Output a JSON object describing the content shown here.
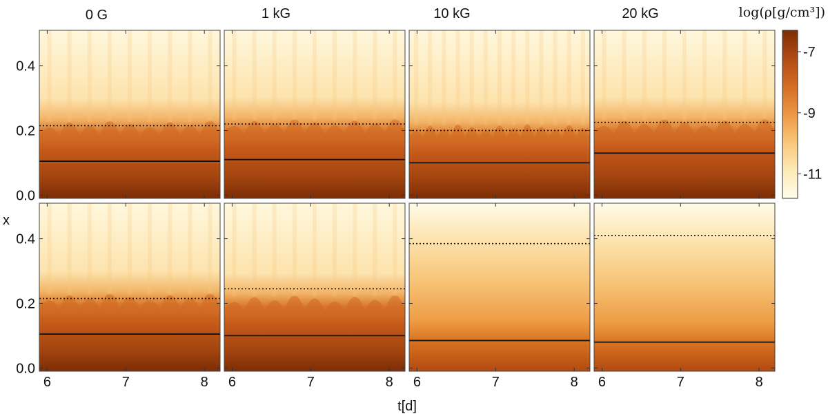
{
  "chart_data": {
    "type": "heatmap",
    "layout": {
      "rows": 2,
      "cols": 4
    },
    "column_titles": [
      "0 G",
      "1 kG",
      "10 kG",
      "20 kG"
    ],
    "xlabel": "t[d]",
    "ylabel": "x",
    "xlim": [
      5.9,
      8.2
    ],
    "ylim": [
      -0.01,
      0.51
    ],
    "xticks": [
      6,
      7,
      8
    ],
    "xtick_labels": [
      "6",
      "7",
      "8"
    ],
    "yticks": [
      0.0,
      0.2,
      0.4
    ],
    "ytick_labels": [
      "0.0",
      "0.2",
      "0.4"
    ],
    "colorbar": {
      "title": "log(ρ[g/cm³])",
      "range": [
        -11.8,
        -6.3
      ],
      "ticks": [
        -7,
        -9,
        -11
      ],
      "tick_labels": [
        "-7",
        "-9",
        "-11"
      ],
      "colors": [
        "#fffdec",
        "#fde9b6",
        "#f8c577",
        "#ec9745",
        "#d46c24",
        "#ae4a12",
        "#7d2d06"
      ]
    },
    "panels": [
      {
        "row": 0,
        "col": 0,
        "field": "0 G",
        "solid_line_x": 0.105,
        "dotted_line_x": 0.215,
        "transition_x": 0.205,
        "oscillating": true
      },
      {
        "row": 0,
        "col": 1,
        "field": "1 kG",
        "solid_line_x": 0.11,
        "dotted_line_x": 0.22,
        "transition_x": 0.21,
        "oscillating": true
      },
      {
        "row": 0,
        "col": 2,
        "field": "10 kG",
        "solid_line_x": 0.1,
        "dotted_line_x": 0.2,
        "transition_x": 0.195,
        "oscillating": true
      },
      {
        "row": 0,
        "col": 3,
        "field": "20 kG",
        "solid_line_x": 0.13,
        "dotted_line_x": 0.225,
        "transition_x": 0.21,
        "oscillating": true
      },
      {
        "row": 1,
        "col": 0,
        "field": "0 G",
        "solid_line_x": 0.105,
        "dotted_line_x": 0.215,
        "transition_x": 0.205,
        "oscillating": true
      },
      {
        "row": 1,
        "col": 1,
        "field": "1 kG",
        "solid_line_x": 0.1,
        "dotted_line_x": 0.245,
        "transition_x": 0.2,
        "oscillating": true
      },
      {
        "row": 1,
        "col": 2,
        "field": "10 kG",
        "solid_line_x": 0.085,
        "dotted_line_x": 0.385,
        "transition_x": 0.085,
        "oscillating": false
      },
      {
        "row": 1,
        "col": 3,
        "field": "20 kG",
        "solid_line_x": 0.08,
        "dotted_line_x": 0.41,
        "transition_x": 0.08,
        "oscillating": false
      }
    ]
  }
}
